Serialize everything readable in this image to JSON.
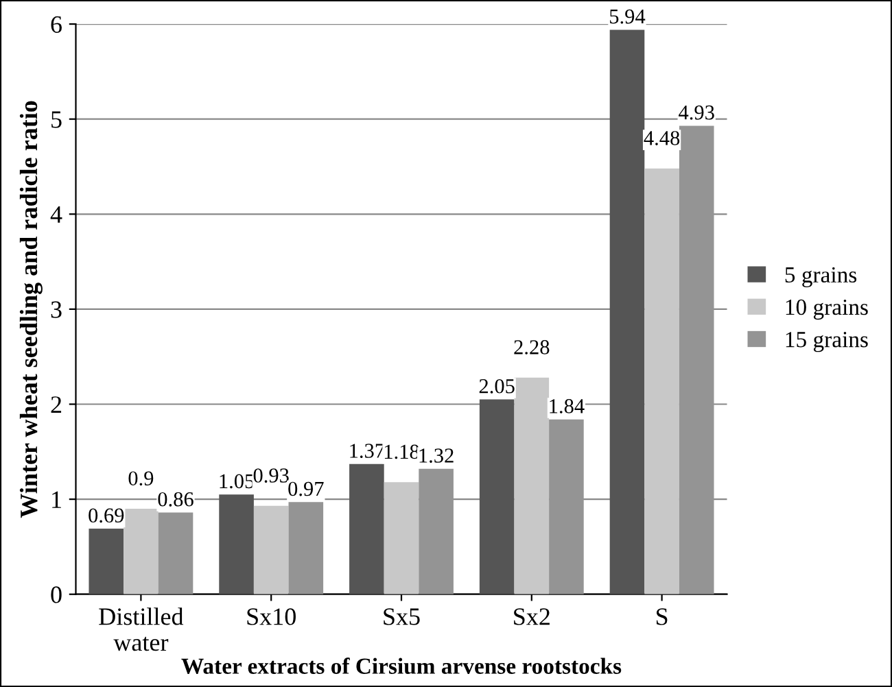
{
  "chart_data": {
    "type": "bar",
    "xlabel": "Water extracts of Cirsium arvense rootstocks",
    "ylabel": "Winter wheat seedling and radicle ratio",
    "categories": [
      "Distilled\nwater",
      "Sx10",
      "Sx5",
      "Sx2",
      "S"
    ],
    "series": [
      {
        "name": "5 grains",
        "color": "#555555",
        "values": [
          0.69,
          1.05,
          1.37,
          2.05,
          5.94
        ]
      },
      {
        "name": "10 grains",
        "color": "#c8c8c8",
        "values": [
          0.9,
          0.93,
          1.18,
          2.28,
          4.48
        ]
      },
      {
        "name": "15 grains",
        "color": "#949494",
        "values": [
          0.86,
          0.97,
          1.32,
          1.84,
          4.93
        ]
      }
    ],
    "ylim": [
      0,
      6
    ],
    "yticks": [
      0,
      1,
      2,
      3,
      4,
      5,
      6
    ],
    "grid": "y",
    "legend": "right",
    "data_labels": true
  }
}
